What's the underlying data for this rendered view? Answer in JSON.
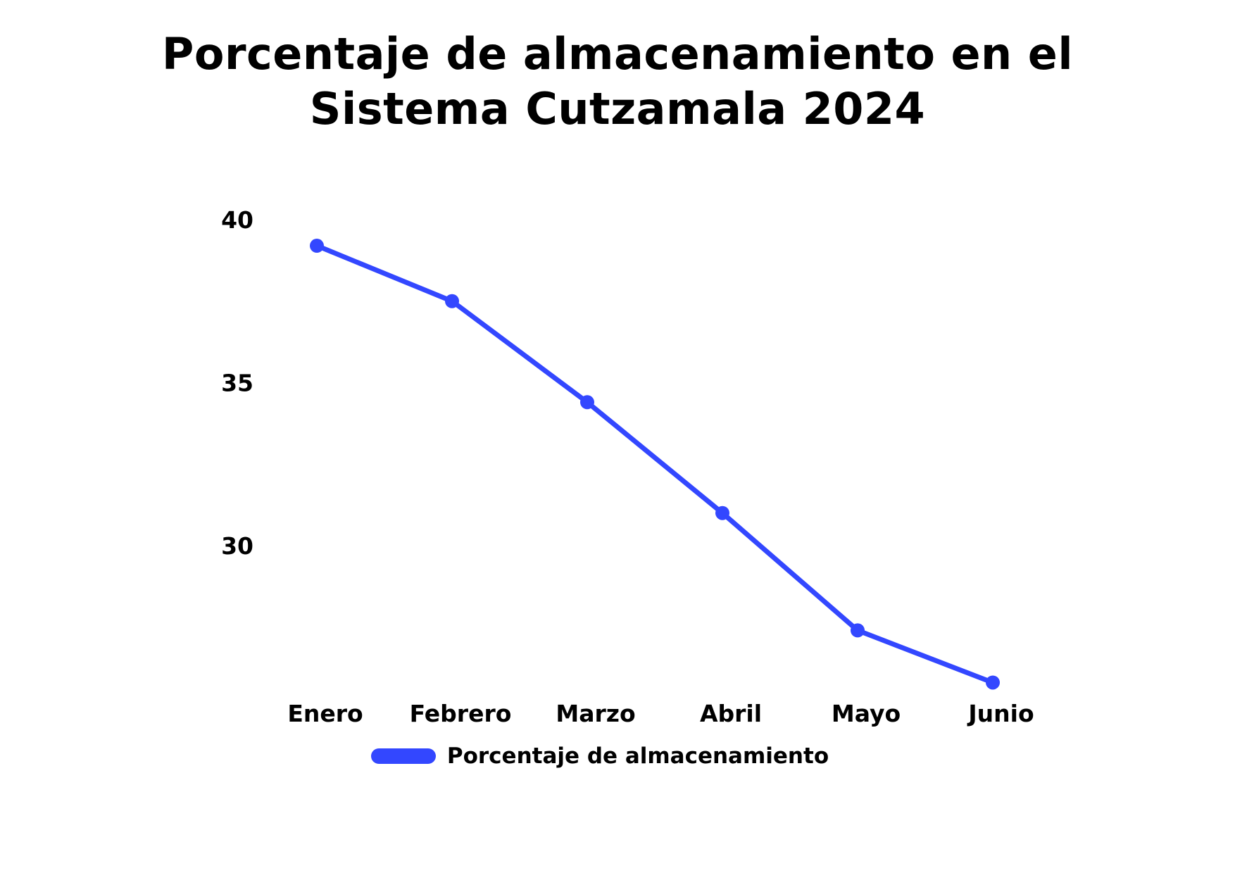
{
  "chart_data": {
    "type": "line",
    "title": "Porcentaje de almacenamiento en el Sistema Cutzamala 2024",
    "title_lines": [
      "Porcentaje de almacenamiento en el",
      "Sistema Cutzamala 2024"
    ],
    "categories": [
      "Enero",
      "Febrero",
      "Marzo",
      "Abril",
      "Mayo",
      "Junio"
    ],
    "series": [
      {
        "name": "Porcentaje de almacenamiento",
        "values": [
          39.2,
          37.5,
          34.4,
          31.0,
          27.4,
          25.8
        ],
        "color": "#3347ff"
      }
    ],
    "yticks": [
      30,
      35,
      40
    ],
    "ylim": [
      25.5,
      40.2
    ],
    "xlabel": "",
    "ylabel": "",
    "grid": false,
    "legend_position": "bottom-center"
  }
}
